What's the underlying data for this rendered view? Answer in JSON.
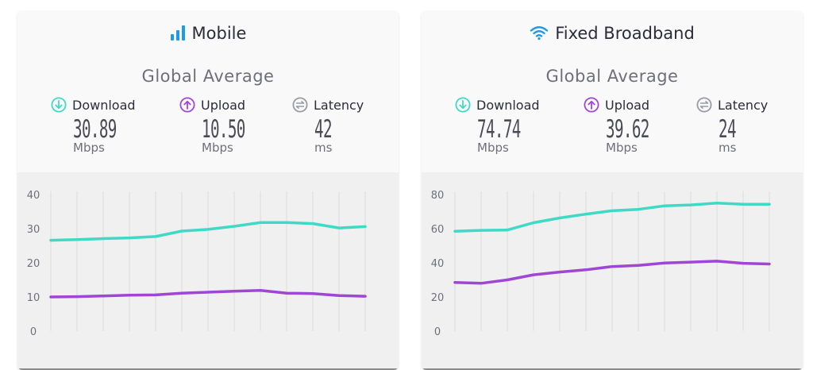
{
  "colors": {
    "download": "#3edac6",
    "upload": "#9f46d4",
    "latency": "#9a9aa4",
    "signal": "#1e9be6"
  },
  "panels": [
    {
      "title": "Mobile",
      "title_icon": "signal-bars-icon",
      "subtitle": "Global Average",
      "metrics": [
        {
          "label": "Download",
          "value": "30.89",
          "unit": "Mbps",
          "icon": "download-arrow-icon"
        },
        {
          "label": "Upload",
          "value": "10.50",
          "unit": "Mbps",
          "icon": "upload-arrow-icon"
        },
        {
          "label": "Latency",
          "value": "42",
          "unit": "ms",
          "icon": "latency-icon"
        }
      ]
    },
    {
      "title": "Fixed Broadband",
      "title_icon": "wifi-icon",
      "subtitle": "Global Average",
      "metrics": [
        {
          "label": "Download",
          "value": "74.74",
          "unit": "Mbps",
          "icon": "download-arrow-icon"
        },
        {
          "label": "Upload",
          "value": "39.62",
          "unit": "Mbps",
          "icon": "upload-arrow-icon"
        },
        {
          "label": "Latency",
          "value": "24",
          "unit": "ms",
          "icon": "latency-icon"
        }
      ]
    }
  ],
  "chart_data": [
    {
      "type": "line",
      "ylim": [
        0,
        40
      ],
      "yticks": [
        "0",
        "10",
        "20",
        "30",
        "40"
      ],
      "grid": true,
      "x": [
        1,
        2,
        3,
        4,
        5,
        6,
        7,
        8,
        9,
        10,
        11,
        12,
        13
      ],
      "series": [
        {
          "key": "download",
          "values": [
            26.6,
            26.8,
            27.1,
            27.3,
            27.7,
            29.3,
            29.8,
            30.7,
            31.8,
            31.8,
            31.5,
            30.2,
            30.6
          ]
        },
        {
          "key": "upload",
          "values": [
            10.0,
            10.1,
            10.3,
            10.5,
            10.6,
            11.1,
            11.4,
            11.7,
            11.9,
            11.1,
            11.0,
            10.4,
            10.2
          ]
        }
      ]
    },
    {
      "type": "line",
      "ylim": [
        0,
        80
      ],
      "yticks": [
        "0",
        "20",
        "40",
        "60",
        "80"
      ],
      "grid": true,
      "x": [
        1,
        2,
        3,
        4,
        5,
        6,
        7,
        8,
        9,
        10,
        11,
        12,
        13
      ],
      "series": [
        {
          "key": "download",
          "values": [
            58.5,
            59.0,
            59.2,
            63.5,
            66.3,
            68.5,
            70.5,
            71.3,
            73.4,
            73.9,
            75.0,
            74.3,
            74.3
          ]
        },
        {
          "key": "upload",
          "values": [
            28.5,
            28.0,
            30.0,
            33.0,
            34.6,
            35.9,
            37.8,
            38.5,
            39.9,
            40.4,
            41.0,
            39.7,
            39.3
          ]
        }
      ]
    }
  ]
}
